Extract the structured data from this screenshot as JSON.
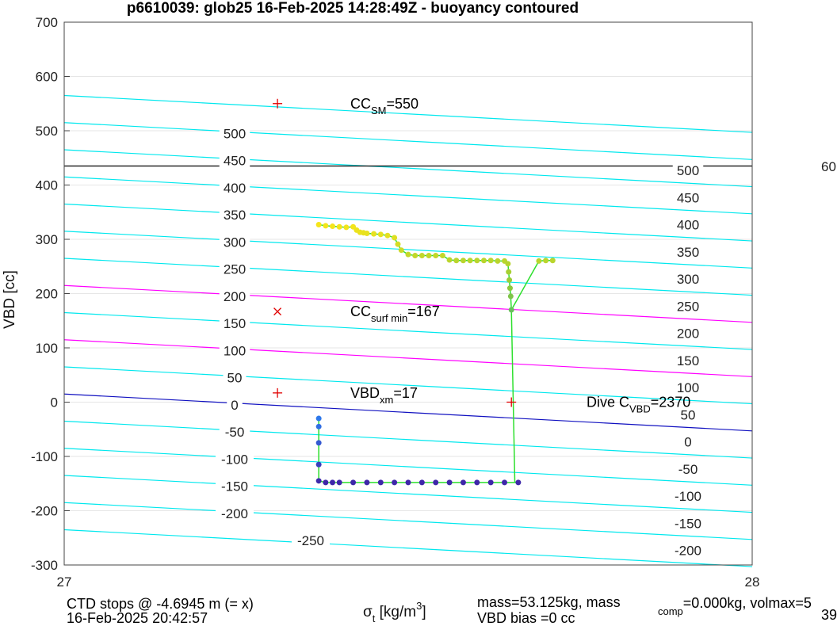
{
  "chart_data": {
    "type": "scatter",
    "title": "p6610039: glob25 16-Feb-2025 14:28:49Z - buoyancy contoured",
    "xlabel": {
      "main": "σ",
      "sub": "t",
      "rest": " [kg/m",
      "sup": "3",
      "close": "]"
    },
    "ylabel": "VBD [cc]",
    "xlim": [
      27,
      28
    ],
    "ylim": [
      -300,
      700
    ],
    "xticks": [
      "27",
      "28"
    ],
    "yticks": [
      700,
      600,
      500,
      400,
      300,
      200,
      100,
      0,
      -100,
      -200,
      -300
    ],
    "grid": true,
    "contour_left_labels": [
      {
        "text": "500",
        "y": 495
      },
      {
        "text": "450",
        "y": 445
      },
      {
        "text": "400",
        "y": 395
      },
      {
        "text": "350",
        "y": 345
      },
      {
        "text": "300",
        "y": 295
      },
      {
        "text": "250",
        "y": 245
      },
      {
        "text": "200",
        "y": 195
      },
      {
        "text": "150",
        "y": 145
      },
      {
        "text": "100",
        "y": 95
      },
      {
        "text": "50",
        "y": 45
      },
      {
        "text": "0",
        "y": -5
      },
      {
        "text": "-50",
        "y": -55
      },
      {
        "text": "-100",
        "y": -105
      },
      {
        "text": "-150",
        "y": -155
      },
      {
        "text": "-200",
        "y": -205
      },
      {
        "text": "-250",
        "y": -255
      }
    ],
    "contour_right_labels": [
      {
        "text": "500",
        "y": 427
      },
      {
        "text": "450",
        "y": 377
      },
      {
        "text": "400",
        "y": 327
      },
      {
        "text": "350",
        "y": 277
      },
      {
        "text": "300",
        "y": 227
      },
      {
        "text": "250",
        "y": 177
      },
      {
        "text": "200",
        "y": 127
      },
      {
        "text": "150",
        "y": 77
      },
      {
        "text": "100",
        "y": 27
      },
      {
        "text": "50",
        "y": -23
      },
      {
        "text": "0",
        "y": -73
      },
      {
        "text": "-50",
        "y": -123
      },
      {
        "text": "-100",
        "y": -173
      },
      {
        "text": "-150",
        "y": -223
      },
      {
        "text": "-200",
        "y": -273
      }
    ],
    "edge_label": "60",
    "reference_lines": [
      {
        "name": "max",
        "y0": 435,
        "y1": 435,
        "color": "#000000"
      }
    ],
    "markers": [
      {
        "symbol": "+",
        "x": 27.31,
        "y": 550,
        "color": "#e00000",
        "label": {
          "main": "CC",
          "sub": "SM",
          "rest": "=550"
        }
      },
      {
        "symbol": "x",
        "x": 27.31,
        "y": 167,
        "color": "#e00000",
        "label": {
          "main": "CC",
          "sub": "surf min",
          "rest": "=167"
        }
      },
      {
        "symbol": "+",
        "x": 27.31,
        "y": 17,
        "color": "#e00000",
        "label": {
          "main": "VBD",
          "sub": "xm",
          "rest": "=17"
        }
      },
      {
        "symbol": "+",
        "x": 27.65,
        "y": 0,
        "color": "#e00000",
        "label": {
          "main": "Dive C",
          "sub": "VBD",
          "rest": "=2370"
        }
      }
    ],
    "series": [
      {
        "x": [
          27.37,
          27.38,
          27.39,
          27.4,
          27.41,
          27.42,
          27.425,
          27.43,
          27.435,
          27.44,
          27.45,
          27.46,
          27.47,
          27.48,
          27.485,
          27.49,
          27.5,
          27.51,
          27.52,
          27.53,
          27.54,
          27.55,
          27.56,
          27.57,
          27.58,
          27.59,
          27.6,
          27.61,
          27.62,
          27.63,
          27.64,
          27.645,
          27.646,
          27.647,
          27.648,
          27.649,
          27.65,
          27.69,
          27.7,
          27.71
        ],
        "y": [
          327,
          325,
          324,
          323,
          322,
          323,
          317,
          313,
          312,
          311,
          310,
          309,
          307,
          303,
          291,
          280,
          272,
          270,
          270,
          270,
          270,
          270,
          262,
          261,
          261,
          261,
          261,
          261,
          261,
          260,
          260,
          255,
          240,
          225,
          210,
          195,
          170,
          260,
          261,
          261
        ]
      },
      {
        "x": [
          27.37,
          27.37,
          27.37,
          27.37,
          27.37,
          27.38,
          27.39,
          27.4,
          27.42,
          27.44,
          27.46,
          27.48,
          27.5,
          27.52,
          27.54,
          27.56,
          27.58,
          27.6,
          27.62,
          27.64,
          27.66
        ],
        "y": [
          -30,
          -45,
          -75,
          -115,
          -145,
          -148,
          -148,
          -148,
          -148,
          -148,
          -148,
          -148,
          -148,
          -148,
          -148,
          -148,
          -148,
          -148,
          -148,
          -148,
          -148
        ]
      }
    ]
  },
  "footer": {
    "left1": "CTD stops @ -4.6945 m (= x)",
    "left2": "16-Feb-2025 20:42:57",
    "mass": "mass=53.125kg, mass",
    "comp_sub": "comp",
    "comp_rest": "=0.000kg, volmax=5",
    "bias": "VBD bias =0 cc",
    "corner": "39"
  }
}
